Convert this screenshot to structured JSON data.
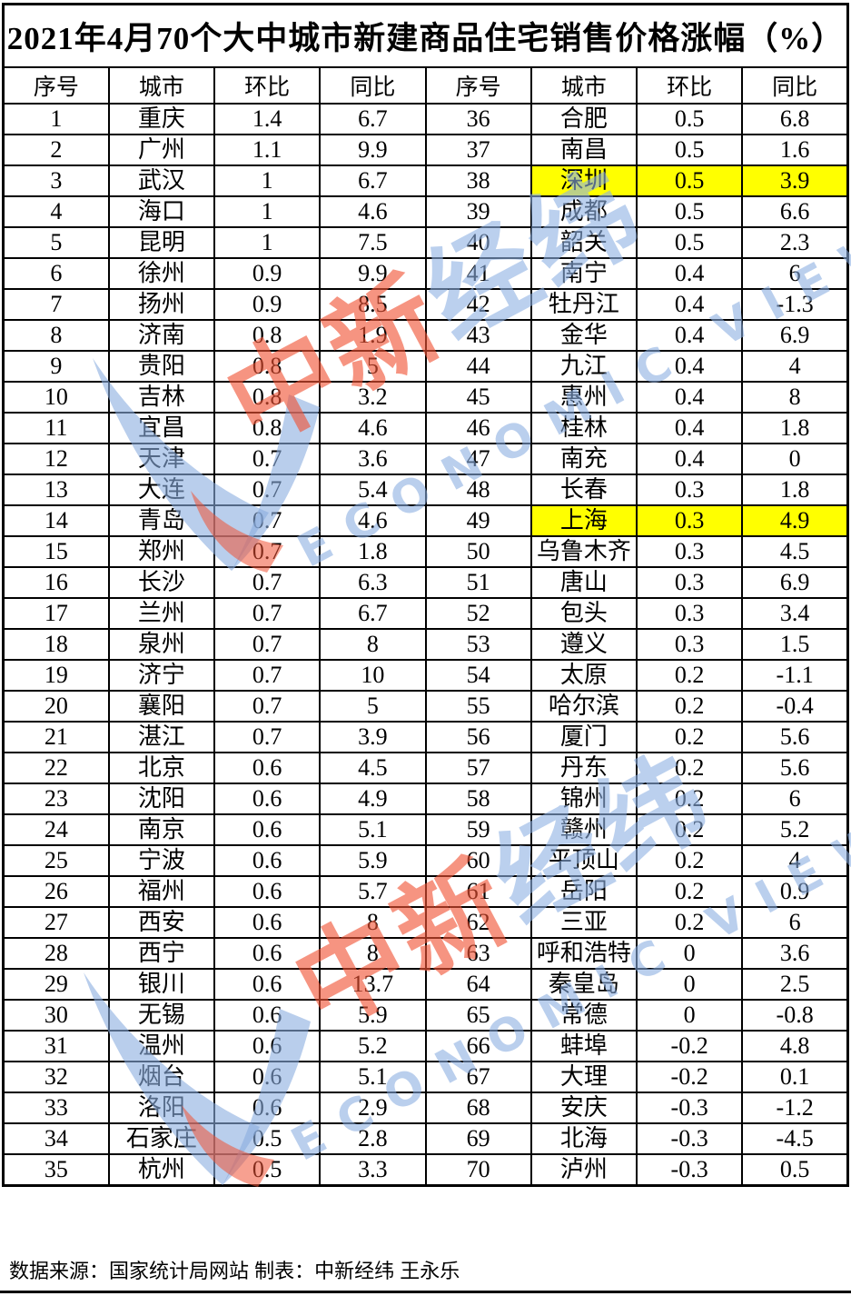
{
  "title": "2021年4月70个大中城市新建商品住宅销售价格涨幅（%）",
  "columns": [
    "序号",
    "城市",
    "环比",
    "同比",
    "序号",
    "城市",
    "环比",
    "同比"
  ],
  "footer": "数据来源：国家统计局网站  制表：中新经纬 王永乐",
  "watermark": {
    "brand_red": "中新",
    "brand_blue": "经纬",
    "latin": "ECONOMIC VIEW"
  },
  "colors": {
    "highlight": "#ffff00",
    "watermark_red": "#f05234",
    "watermark_blue": "#8eb1e2",
    "border": "#000000"
  },
  "left_rows": [
    {
      "no": "1",
      "city": "重庆",
      "mom": "1.4",
      "yoy": "6.7",
      "highlight": false
    },
    {
      "no": "2",
      "city": "广州",
      "mom": "1.1",
      "yoy": "9.9",
      "highlight": false
    },
    {
      "no": "3",
      "city": "武汉",
      "mom": "1",
      "yoy": "6.7",
      "highlight": false
    },
    {
      "no": "4",
      "city": "海口",
      "mom": "1",
      "yoy": "4.6",
      "highlight": false
    },
    {
      "no": "5",
      "city": "昆明",
      "mom": "1",
      "yoy": "7.5",
      "highlight": false
    },
    {
      "no": "6",
      "city": "徐州",
      "mom": "0.9",
      "yoy": "9.9",
      "highlight": false
    },
    {
      "no": "7",
      "city": "扬州",
      "mom": "0.9",
      "yoy": "8.5",
      "highlight": false
    },
    {
      "no": "8",
      "city": "济南",
      "mom": "0.8",
      "yoy": "1.9",
      "highlight": false
    },
    {
      "no": "9",
      "city": "贵阳",
      "mom": "0.8",
      "yoy": "5",
      "highlight": false
    },
    {
      "no": "10",
      "city": "吉林",
      "mom": "0.8",
      "yoy": "3.2",
      "highlight": false
    },
    {
      "no": "11",
      "city": "宜昌",
      "mom": "0.8",
      "yoy": "4.6",
      "highlight": false
    },
    {
      "no": "12",
      "city": "天津",
      "mom": "0.7",
      "yoy": "3.6",
      "highlight": false
    },
    {
      "no": "13",
      "city": "大连",
      "mom": "0.7",
      "yoy": "5.4",
      "highlight": false
    },
    {
      "no": "14",
      "city": "青岛",
      "mom": "0.7",
      "yoy": "4.6",
      "highlight": false
    },
    {
      "no": "15",
      "city": "郑州",
      "mom": "0.7",
      "yoy": "1.8",
      "highlight": false
    },
    {
      "no": "16",
      "city": "长沙",
      "mom": "0.7",
      "yoy": "6.3",
      "highlight": false
    },
    {
      "no": "17",
      "city": "兰州",
      "mom": "0.7",
      "yoy": "6.7",
      "highlight": false
    },
    {
      "no": "18",
      "city": "泉州",
      "mom": "0.7",
      "yoy": "8",
      "highlight": false
    },
    {
      "no": "19",
      "city": "济宁",
      "mom": "0.7",
      "yoy": "10",
      "highlight": false
    },
    {
      "no": "20",
      "city": "襄阳",
      "mom": "0.7",
      "yoy": "5",
      "highlight": false
    },
    {
      "no": "21",
      "city": "湛江",
      "mom": "0.7",
      "yoy": "3.9",
      "highlight": false
    },
    {
      "no": "22",
      "city": "北京",
      "mom": "0.6",
      "yoy": "4.5",
      "highlight": false
    },
    {
      "no": "23",
      "city": "沈阳",
      "mom": "0.6",
      "yoy": "4.9",
      "highlight": false
    },
    {
      "no": "24",
      "city": "南京",
      "mom": "0.6",
      "yoy": "5.1",
      "highlight": false
    },
    {
      "no": "25",
      "city": "宁波",
      "mom": "0.6",
      "yoy": "5.9",
      "highlight": false
    },
    {
      "no": "26",
      "city": "福州",
      "mom": "0.6",
      "yoy": "5.7",
      "highlight": false
    },
    {
      "no": "27",
      "city": "西安",
      "mom": "0.6",
      "yoy": "8",
      "highlight": false
    },
    {
      "no": "28",
      "city": "西宁",
      "mom": "0.6",
      "yoy": "8",
      "highlight": false
    },
    {
      "no": "29",
      "city": "银川",
      "mom": "0.6",
      "yoy": "13.7",
      "highlight": false
    },
    {
      "no": "30",
      "city": "无锡",
      "mom": "0.6",
      "yoy": "5.9",
      "highlight": false
    },
    {
      "no": "31",
      "city": "温州",
      "mom": "0.6",
      "yoy": "5.2",
      "highlight": false
    },
    {
      "no": "32",
      "city": "烟台",
      "mom": "0.6",
      "yoy": "5.1",
      "highlight": false
    },
    {
      "no": "33",
      "city": "洛阳",
      "mom": "0.6",
      "yoy": "2.9",
      "highlight": false
    },
    {
      "no": "34",
      "city": "石家庄",
      "mom": "0.5",
      "yoy": "2.8",
      "highlight": false
    },
    {
      "no": "35",
      "city": "杭州",
      "mom": "0.5",
      "yoy": "3.3",
      "highlight": false
    }
  ],
  "right_rows": [
    {
      "no": "36",
      "city": "合肥",
      "mom": "0.5",
      "yoy": "6.8",
      "highlight": false
    },
    {
      "no": "37",
      "city": "南昌",
      "mom": "0.5",
      "yoy": "1.6",
      "highlight": false
    },
    {
      "no": "38",
      "city": "深圳",
      "mom": "0.5",
      "yoy": "3.9",
      "highlight": true
    },
    {
      "no": "39",
      "city": "成都",
      "mom": "0.5",
      "yoy": "6.6",
      "highlight": false
    },
    {
      "no": "40",
      "city": "韶关",
      "mom": "0.5",
      "yoy": "2.3",
      "highlight": false
    },
    {
      "no": "41",
      "city": "南宁",
      "mom": "0.4",
      "yoy": "6",
      "highlight": false
    },
    {
      "no": "42",
      "city": "牡丹江",
      "mom": "0.4",
      "yoy": "-1.3",
      "highlight": false
    },
    {
      "no": "43",
      "city": "金华",
      "mom": "0.4",
      "yoy": "6.9",
      "highlight": false
    },
    {
      "no": "44",
      "city": "九江",
      "mom": "0.4",
      "yoy": "4",
      "highlight": false
    },
    {
      "no": "45",
      "city": "惠州",
      "mom": "0.4",
      "yoy": "8",
      "highlight": false
    },
    {
      "no": "46",
      "city": "桂林",
      "mom": "0.4",
      "yoy": "1.8",
      "highlight": false
    },
    {
      "no": "47",
      "city": "南充",
      "mom": "0.4",
      "yoy": "0",
      "highlight": false
    },
    {
      "no": "48",
      "city": "长春",
      "mom": "0.3",
      "yoy": "1.8",
      "highlight": false
    },
    {
      "no": "49",
      "city": "上海",
      "mom": "0.3",
      "yoy": "4.9",
      "highlight": true
    },
    {
      "no": "50",
      "city": "乌鲁木齐",
      "mom": "0.3",
      "yoy": "4.5",
      "highlight": false
    },
    {
      "no": "51",
      "city": "唐山",
      "mom": "0.3",
      "yoy": "6.9",
      "highlight": false
    },
    {
      "no": "52",
      "city": "包头",
      "mom": "0.3",
      "yoy": "3.4",
      "highlight": false
    },
    {
      "no": "53",
      "city": "遵义",
      "mom": "0.3",
      "yoy": "1.5",
      "highlight": false
    },
    {
      "no": "54",
      "city": "太原",
      "mom": "0.2",
      "yoy": "-1.1",
      "highlight": false
    },
    {
      "no": "55",
      "city": "哈尔滨",
      "mom": "0.2",
      "yoy": "-0.4",
      "highlight": false
    },
    {
      "no": "56",
      "city": "厦门",
      "mom": "0.2",
      "yoy": "5.6",
      "highlight": false
    },
    {
      "no": "57",
      "city": "丹东",
      "mom": "0.2",
      "yoy": "5.6",
      "highlight": false
    },
    {
      "no": "58",
      "city": "锦州",
      "mom": "0.2",
      "yoy": "6",
      "highlight": false
    },
    {
      "no": "59",
      "city": "赣州",
      "mom": "0.2",
      "yoy": "5.2",
      "highlight": false
    },
    {
      "no": "60",
      "city": "平顶山",
      "mom": "0.2",
      "yoy": "4",
      "highlight": false
    },
    {
      "no": "61",
      "city": "岳阳",
      "mom": "0.2",
      "yoy": "0.9",
      "highlight": false
    },
    {
      "no": "62",
      "city": "三亚",
      "mom": "0.2",
      "yoy": "6",
      "highlight": false
    },
    {
      "no": "63",
      "city": "呼和浩特",
      "mom": "0",
      "yoy": "3.6",
      "highlight": false
    },
    {
      "no": "64",
      "city": "秦皇岛",
      "mom": "0",
      "yoy": "2.5",
      "highlight": false
    },
    {
      "no": "65",
      "city": "常德",
      "mom": "0",
      "yoy": "-0.8",
      "highlight": false
    },
    {
      "no": "66",
      "city": "蚌埠",
      "mom": "-0.2",
      "yoy": "4.8",
      "highlight": false
    },
    {
      "no": "67",
      "city": "大理",
      "mom": "-0.2",
      "yoy": "0.1",
      "highlight": false
    },
    {
      "no": "68",
      "city": "安庆",
      "mom": "-0.3",
      "yoy": "-1.2",
      "highlight": false
    },
    {
      "no": "69",
      "city": "北海",
      "mom": "-0.3",
      "yoy": "-4.5",
      "highlight": false
    },
    {
      "no": "70",
      "city": "泸州",
      "mom": "-0.3",
      "yoy": "0.5",
      "highlight": false
    }
  ]
}
